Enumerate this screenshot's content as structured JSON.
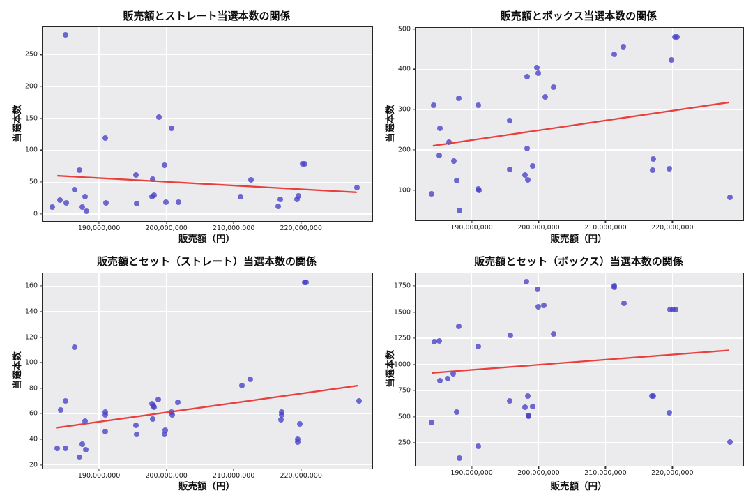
{
  "colors": {
    "point": "#4640c8",
    "trend": "#e8312e",
    "plot_background": "#ebebed",
    "grid": "#ffffff",
    "axes_border": "#262626",
    "figure_background": "#ffffff"
  },
  "chart_data": [
    {
      "type": "scatter",
      "title": "販売額とストレート当選本数の関係",
      "xlabel": "販売額（円）",
      "ylabel": "当選本数",
      "xlim": [
        181600000,
        230600000
      ],
      "ylim": [
        -11,
        293
      ],
      "xticks": [
        190000000,
        200000000,
        210000000,
        220000000
      ],
      "xtick_labels": [
        "190,000,000",
        "200,000,000",
        "210,000,000",
        "220,000,000"
      ],
      "yticks": [
        0,
        50,
        100,
        150,
        200,
        250
      ],
      "ytick_labels": [
        "0",
        "50",
        "100",
        "150",
        "200",
        "250"
      ],
      "grid": true,
      "legend": "none",
      "points": [
        [
          183000000,
          11
        ],
        [
          184200000,
          22
        ],
        [
          185000000,
          281
        ],
        [
          185100000,
          17
        ],
        [
          186400000,
          38
        ],
        [
          187100000,
          69
        ],
        [
          187500000,
          11
        ],
        [
          187900000,
          27
        ],
        [
          188100000,
          4
        ],
        [
          190900000,
          119
        ],
        [
          191000000,
          17
        ],
        [
          195500000,
          61
        ],
        [
          195600000,
          16
        ],
        [
          197900000,
          27
        ],
        [
          198000000,
          55
        ],
        [
          198200000,
          29
        ],
        [
          198900000,
          152
        ],
        [
          199700000,
          76
        ],
        [
          199900000,
          19
        ],
        [
          200800000,
          134
        ],
        [
          201800000,
          19
        ],
        [
          211000000,
          27
        ],
        [
          212600000,
          54
        ],
        [
          216600000,
          12
        ],
        [
          216900000,
          23
        ],
        [
          219400000,
          23
        ],
        [
          219600000,
          28
        ],
        [
          220200000,
          79
        ],
        [
          220500000,
          79
        ],
        [
          228300000,
          42
        ]
      ],
      "trend": {
        "x": [
          183800000,
          228300000
        ],
        "y": [
          60,
          34
        ]
      }
    },
    {
      "type": "scatter",
      "title": "販売額とボックス当選本数の関係",
      "xlabel": "販売額（円）",
      "ylabel": "当選本数",
      "xlim": [
        181600000,
        230600000
      ],
      "ylim": [
        25,
        503
      ],
      "xticks": [
        190000000,
        200000000,
        210000000,
        220000000
      ],
      "xtick_labels": [
        "190,000,000",
        "200,000,000",
        "210,000,000",
        "220,000,000"
      ],
      "yticks": [
        100,
        200,
        300,
        400,
        500
      ],
      "ytick_labels": [
        "100",
        "200",
        "300",
        "400",
        "500"
      ],
      "grid": true,
      "legend": "none",
      "points": [
        [
          184000000,
          91
        ],
        [
          184300000,
          311
        ],
        [
          185100000,
          186
        ],
        [
          185200000,
          253
        ],
        [
          186600000,
          219
        ],
        [
          187300000,
          172
        ],
        [
          187700000,
          123
        ],
        [
          188100000,
          328
        ],
        [
          188200000,
          50
        ],
        [
          191000000,
          311
        ],
        [
          191000000,
          103
        ],
        [
          191100000,
          99
        ],
        [
          195700000,
          272
        ],
        [
          195700000,
          152
        ],
        [
          198000000,
          138
        ],
        [
          198300000,
          381
        ],
        [
          198300000,
          204
        ],
        [
          198400000,
          125
        ],
        [
          199100000,
          160
        ],
        [
          199700000,
          404
        ],
        [
          199900000,
          391
        ],
        [
          201000000,
          332
        ],
        [
          202200000,
          356
        ],
        [
          211300000,
          437
        ],
        [
          212700000,
          456
        ],
        [
          217000000,
          149
        ],
        [
          217100000,
          177
        ],
        [
          219500000,
          154
        ],
        [
          219900000,
          423
        ],
        [
          220400000,
          481
        ],
        [
          220700000,
          481
        ],
        [
          228600000,
          83
        ]
      ],
      "trend": {
        "x": [
          184200000,
          228500000
        ],
        "y": [
          210,
          318
        ]
      }
    },
    {
      "type": "scatter",
      "title": "販売額とセット（ストレート）当選本数の関係",
      "xlabel": "販売額（円）",
      "ylabel": "当選本数",
      "xlim": [
        181600000,
        230600000
      ],
      "ylim": [
        17,
        170
      ],
      "xticks": [
        190000000,
        200000000,
        210000000,
        220000000
      ],
      "xtick_labels": [
        "190,000,000",
        "200,000,000",
        "210,000,000",
        "220,000,000"
      ],
      "yticks": [
        20,
        40,
        60,
        80,
        100,
        120,
        140,
        160
      ],
      "ytick_labels": [
        "20",
        "40",
        "60",
        "80",
        "100",
        "120",
        "140",
        "160"
      ],
      "grid": true,
      "legend": "none",
      "points": [
        [
          183800000,
          33
        ],
        [
          184300000,
          63
        ],
        [
          185000000,
          70
        ],
        [
          185000000,
          33
        ],
        [
          186400000,
          112
        ],
        [
          187100000,
          26
        ],
        [
          187500000,
          36
        ],
        [
          187900000,
          54
        ],
        [
          188000000,
          32
        ],
        [
          190900000,
          61
        ],
        [
          190900000,
          59
        ],
        [
          190900000,
          46
        ],
        [
          195500000,
          51
        ],
        [
          195600000,
          44
        ],
        [
          197900000,
          68
        ],
        [
          198100000,
          66
        ],
        [
          198200000,
          65
        ],
        [
          198000000,
          56
        ],
        [
          198800000,
          71
        ],
        [
          199700000,
          44
        ],
        [
          199800000,
          47
        ],
        [
          200800000,
          61
        ],
        [
          200900000,
          59
        ],
        [
          201700000,
          69
        ],
        [
          211200000,
          82
        ],
        [
          212500000,
          87
        ],
        [
          217000000,
          55
        ],
        [
          217100000,
          61
        ],
        [
          217100000,
          59
        ],
        [
          219500000,
          40
        ],
        [
          219500000,
          38
        ],
        [
          219800000,
          52
        ],
        [
          220600000,
          163
        ],
        [
          220800000,
          163
        ],
        [
          228600000,
          70
        ]
      ],
      "trend": {
        "x": [
          183700000,
          228500000
        ],
        "y": [
          49,
          82
        ]
      }
    },
    {
      "type": "scatter",
      "title": "販売額とセット（ボックス）当選本数の関係",
      "xlabel": "販売額（円）",
      "ylabel": "当選本数",
      "xlim": [
        181600000,
        230600000
      ],
      "ylim": [
        30,
        1870
      ],
      "xticks": [
        190000000,
        200000000,
        210000000,
        220000000
      ],
      "xtick_labels": [
        "190,000,000",
        "200,000,000",
        "210,000,000",
        "220,000,000"
      ],
      "yticks": [
        250,
        500,
        750,
        1000,
        1250,
        1500,
        1750
      ],
      "ytick_labels": [
        "250",
        "500",
        "750",
        "1000",
        "1250",
        "1500",
        "1750"
      ],
      "grid": true,
      "legend": "none",
      "points": [
        [
          184000000,
          444
        ],
        [
          184400000,
          1218
        ],
        [
          185100000,
          1223
        ],
        [
          185200000,
          845
        ],
        [
          186400000,
          865
        ],
        [
          187200000,
          907
        ],
        [
          187700000,
          544
        ],
        [
          188100000,
          1363
        ],
        [
          188200000,
          106
        ],
        [
          191000000,
          1167
        ],
        [
          191000000,
          215
        ],
        [
          195800000,
          1274
        ],
        [
          195700000,
          647
        ],
        [
          198000000,
          593
        ],
        [
          198200000,
          1788
        ],
        [
          198400000,
          698
        ],
        [
          198500000,
          513
        ],
        [
          198500000,
          505
        ],
        [
          199100000,
          598
        ],
        [
          199800000,
          1714
        ],
        [
          199900000,
          1552
        ],
        [
          200800000,
          1563
        ],
        [
          202200000,
          1292
        ],
        [
          211300000,
          1748
        ],
        [
          211300000,
          1735
        ],
        [
          212800000,
          1585
        ],
        [
          216900000,
          694
        ],
        [
          217100000,
          694
        ],
        [
          219700000,
          1523
        ],
        [
          220100000,
          1523
        ],
        [
          220500000,
          1523
        ],
        [
          219600000,
          540
        ],
        [
          228600000,
          258
        ]
      ],
      "trend": {
        "x": [
          184100000,
          228500000
        ],
        "y": [
          918,
          1134
        ]
      }
    }
  ]
}
